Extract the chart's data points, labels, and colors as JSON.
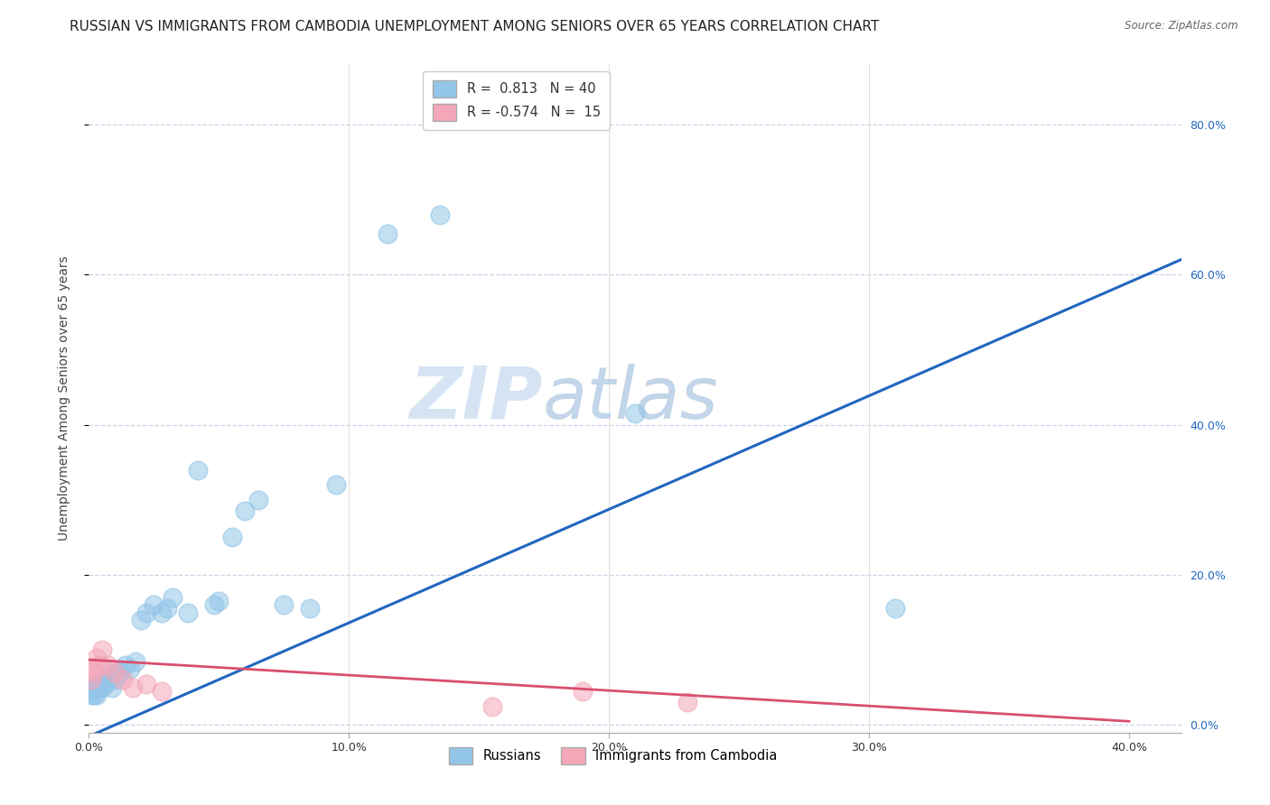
{
  "title": "RUSSIAN VS IMMIGRANTS FROM CAMBODIA UNEMPLOYMENT AMONG SENIORS OVER 65 YEARS CORRELATION CHART",
  "source": "Source: ZipAtlas.com",
  "ylabel": "Unemployment Among Seniors over 65 years",
  "xlabel_ticks": [
    "0.0%",
    "10.0%",
    "20.0%",
    "30.0%",
    "40.0%"
  ],
  "ylabel_ticks_right": [
    "0.0%",
    "20.0%",
    "40.0%",
    "60.0%",
    "80.0%"
  ],
  "xlim": [
    0.0,
    0.42
  ],
  "ylim": [
    -0.01,
    0.88
  ],
  "R_blue": 0.813,
  "N_blue": 40,
  "R_pink": -0.574,
  "N_pink": 15,
  "blue_scatter_x": [
    0.001,
    0.001,
    0.002,
    0.002,
    0.003,
    0.003,
    0.004,
    0.004,
    0.005,
    0.005,
    0.006,
    0.007,
    0.008,
    0.009,
    0.01,
    0.011,
    0.012,
    0.014,
    0.016,
    0.018,
    0.02,
    0.022,
    0.025,
    0.028,
    0.03,
    0.032,
    0.038,
    0.042,
    0.048,
    0.05,
    0.055,
    0.06,
    0.065,
    0.075,
    0.085,
    0.095,
    0.115,
    0.135,
    0.21,
    0.31
  ],
  "blue_scatter_y": [
    0.04,
    0.05,
    0.04,
    0.05,
    0.04,
    0.055,
    0.05,
    0.055,
    0.05,
    0.06,
    0.055,
    0.06,
    0.07,
    0.05,
    0.06,
    0.07,
    0.07,
    0.08,
    0.075,
    0.085,
    0.14,
    0.15,
    0.16,
    0.15,
    0.155,
    0.17,
    0.15,
    0.34,
    0.16,
    0.165,
    0.25,
    0.285,
    0.3,
    0.16,
    0.155,
    0.32,
    0.655,
    0.68,
    0.415,
    0.155
  ],
  "pink_scatter_x": [
    0.001,
    0.001,
    0.002,
    0.003,
    0.004,
    0.005,
    0.007,
    0.01,
    0.013,
    0.017,
    0.022,
    0.028,
    0.155,
    0.19,
    0.23
  ],
  "pink_scatter_y": [
    0.06,
    0.075,
    0.07,
    0.09,
    0.08,
    0.1,
    0.08,
    0.07,
    0.06,
    0.05,
    0.055,
    0.045,
    0.025,
    0.045,
    0.03
  ],
  "blue_line_x": [
    0.0,
    0.42
  ],
  "blue_line_y": [
    -0.015,
    0.62
  ],
  "pink_line_x": [
    -0.005,
    0.4
  ],
  "pink_line_y": [
    0.088,
    0.005
  ],
  "blue_color": "#92c5e8",
  "pink_color": "#f4a7b9",
  "blue_line_color": "#2166c0",
  "pink_line_color": "#d94f6e",
  "watermark_zip": "ZIP",
  "watermark_atlas": "atlas",
  "background_color": "#ffffff",
  "grid_color": "#c8d4e8",
  "title_fontsize": 11,
  "axis_label_fontsize": 10,
  "tick_fontsize": 9,
  "legend_fontsize": 10.5
}
